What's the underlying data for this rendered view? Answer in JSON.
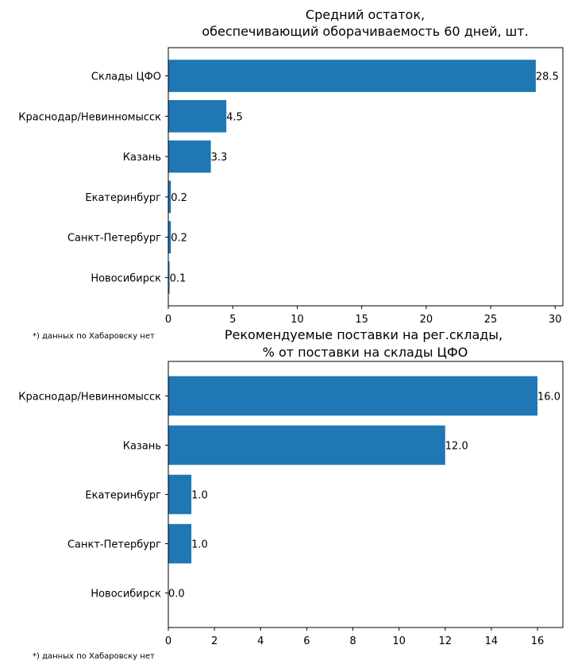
{
  "chart_data": [
    {
      "type": "bar",
      "orientation": "horizontal",
      "title_lines": [
        "Средний остаток,",
        "обеспечивающий оборачиваемость 60 дней, шт."
      ],
      "categories": [
        "Склады ЦФО",
        "Краснодар/Невинномысск",
        "Казань",
        "Екатеринбург",
        "Санкт-Петербург",
        "Новосибирск"
      ],
      "values": [
        28.5,
        4.5,
        3.3,
        0.2,
        0.2,
        0.1
      ],
      "data_labels": [
        "28.5",
        "4.5",
        "3.3",
        "0.2",
        "0.2",
        "0.1"
      ],
      "xlim": [
        0,
        30.6
      ],
      "xticks": [
        0,
        5,
        10,
        15,
        20,
        25,
        30
      ],
      "bar_color": "#1f77b4",
      "grid": false,
      "note": "*) данных по Хабаровску нет"
    },
    {
      "type": "bar",
      "orientation": "horizontal",
      "title_lines": [
        "Рекомендуемые поставки на рег.склады,",
        "% от поставки на склады ЦФО"
      ],
      "categories": [
        "Краснодар/Невинномысск",
        "Казань",
        "Екатеринбург",
        "Санкт-Петербург",
        "Новосибирск"
      ],
      "values": [
        16.0,
        12.0,
        1.0,
        1.0,
        0.0
      ],
      "data_labels": [
        "16.0",
        "12.0",
        "1.0",
        "1.0",
        "0.0"
      ],
      "xlim": [
        0,
        17.1
      ],
      "xticks": [
        0,
        2,
        4,
        6,
        8,
        10,
        12,
        14,
        16
      ],
      "bar_color": "#1f77b4",
      "grid": false,
      "note": "*) данных по Хабаровску нет"
    }
  ]
}
